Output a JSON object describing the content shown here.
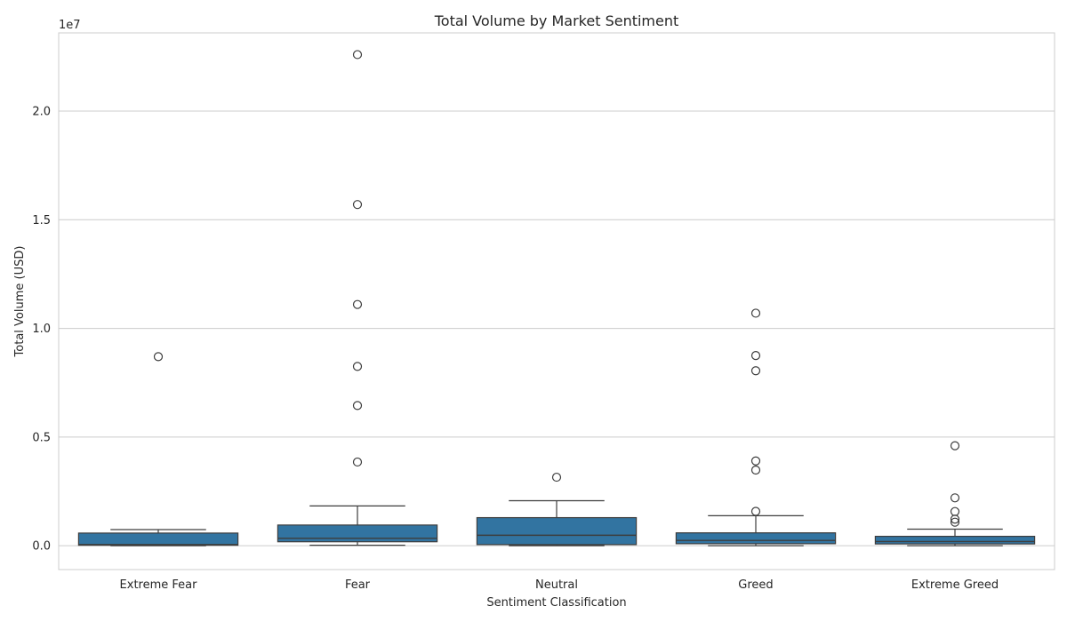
{
  "chart_data": {
    "type": "box",
    "title": "Total Volume by Market Sentiment",
    "xlabel": "Sentiment Classification",
    "ylabel": "Total Volume (USD)",
    "y_offset_label": "1e7",
    "y_scale_factor": 10000000,
    "ylim": [
      -1100000,
      23600000
    ],
    "y_ticks": [
      0,
      5000000,
      10000000,
      15000000,
      20000000
    ],
    "y_tick_labels": [
      "0.0",
      "0.5",
      "1.0",
      "1.5",
      "2.0"
    ],
    "grid": true,
    "box_color": "#3274a1",
    "categories": [
      "Extreme Fear",
      "Fear",
      "Neutral",
      "Greed",
      "Extreme Greed"
    ],
    "boxes": [
      {
        "category": "Extreme Fear",
        "whisker_low": 0,
        "q1": 20000,
        "median": 50000,
        "q3": 580000,
        "whisker_high": 740000,
        "outliers": [
          8700000
        ]
      },
      {
        "category": "Fear",
        "whisker_low": 20000,
        "q1": 180000,
        "median": 340000,
        "q3": 950000,
        "whisker_high": 1830000,
        "outliers": [
          3850000,
          6450000,
          8250000,
          11100000,
          15700000,
          22600000
        ]
      },
      {
        "category": "Neutral",
        "whisker_low": 0,
        "q1": 50000,
        "median": 480000,
        "q3": 1290000,
        "whisker_high": 2070000,
        "outliers": [
          3150000
        ]
      },
      {
        "category": "Greed",
        "whisker_low": 0,
        "q1": 90000,
        "median": 240000,
        "q3": 590000,
        "whisker_high": 1380000,
        "outliers": [
          1580000,
          3480000,
          3900000,
          8050000,
          8750000,
          10700000
        ]
      },
      {
        "category": "Extreme Greed",
        "whisker_low": 0,
        "q1": 80000,
        "median": 190000,
        "q3": 430000,
        "whisker_high": 760000,
        "outliers": [
          1080000,
          1220000,
          1570000,
          2200000,
          4600000
        ]
      }
    ]
  }
}
